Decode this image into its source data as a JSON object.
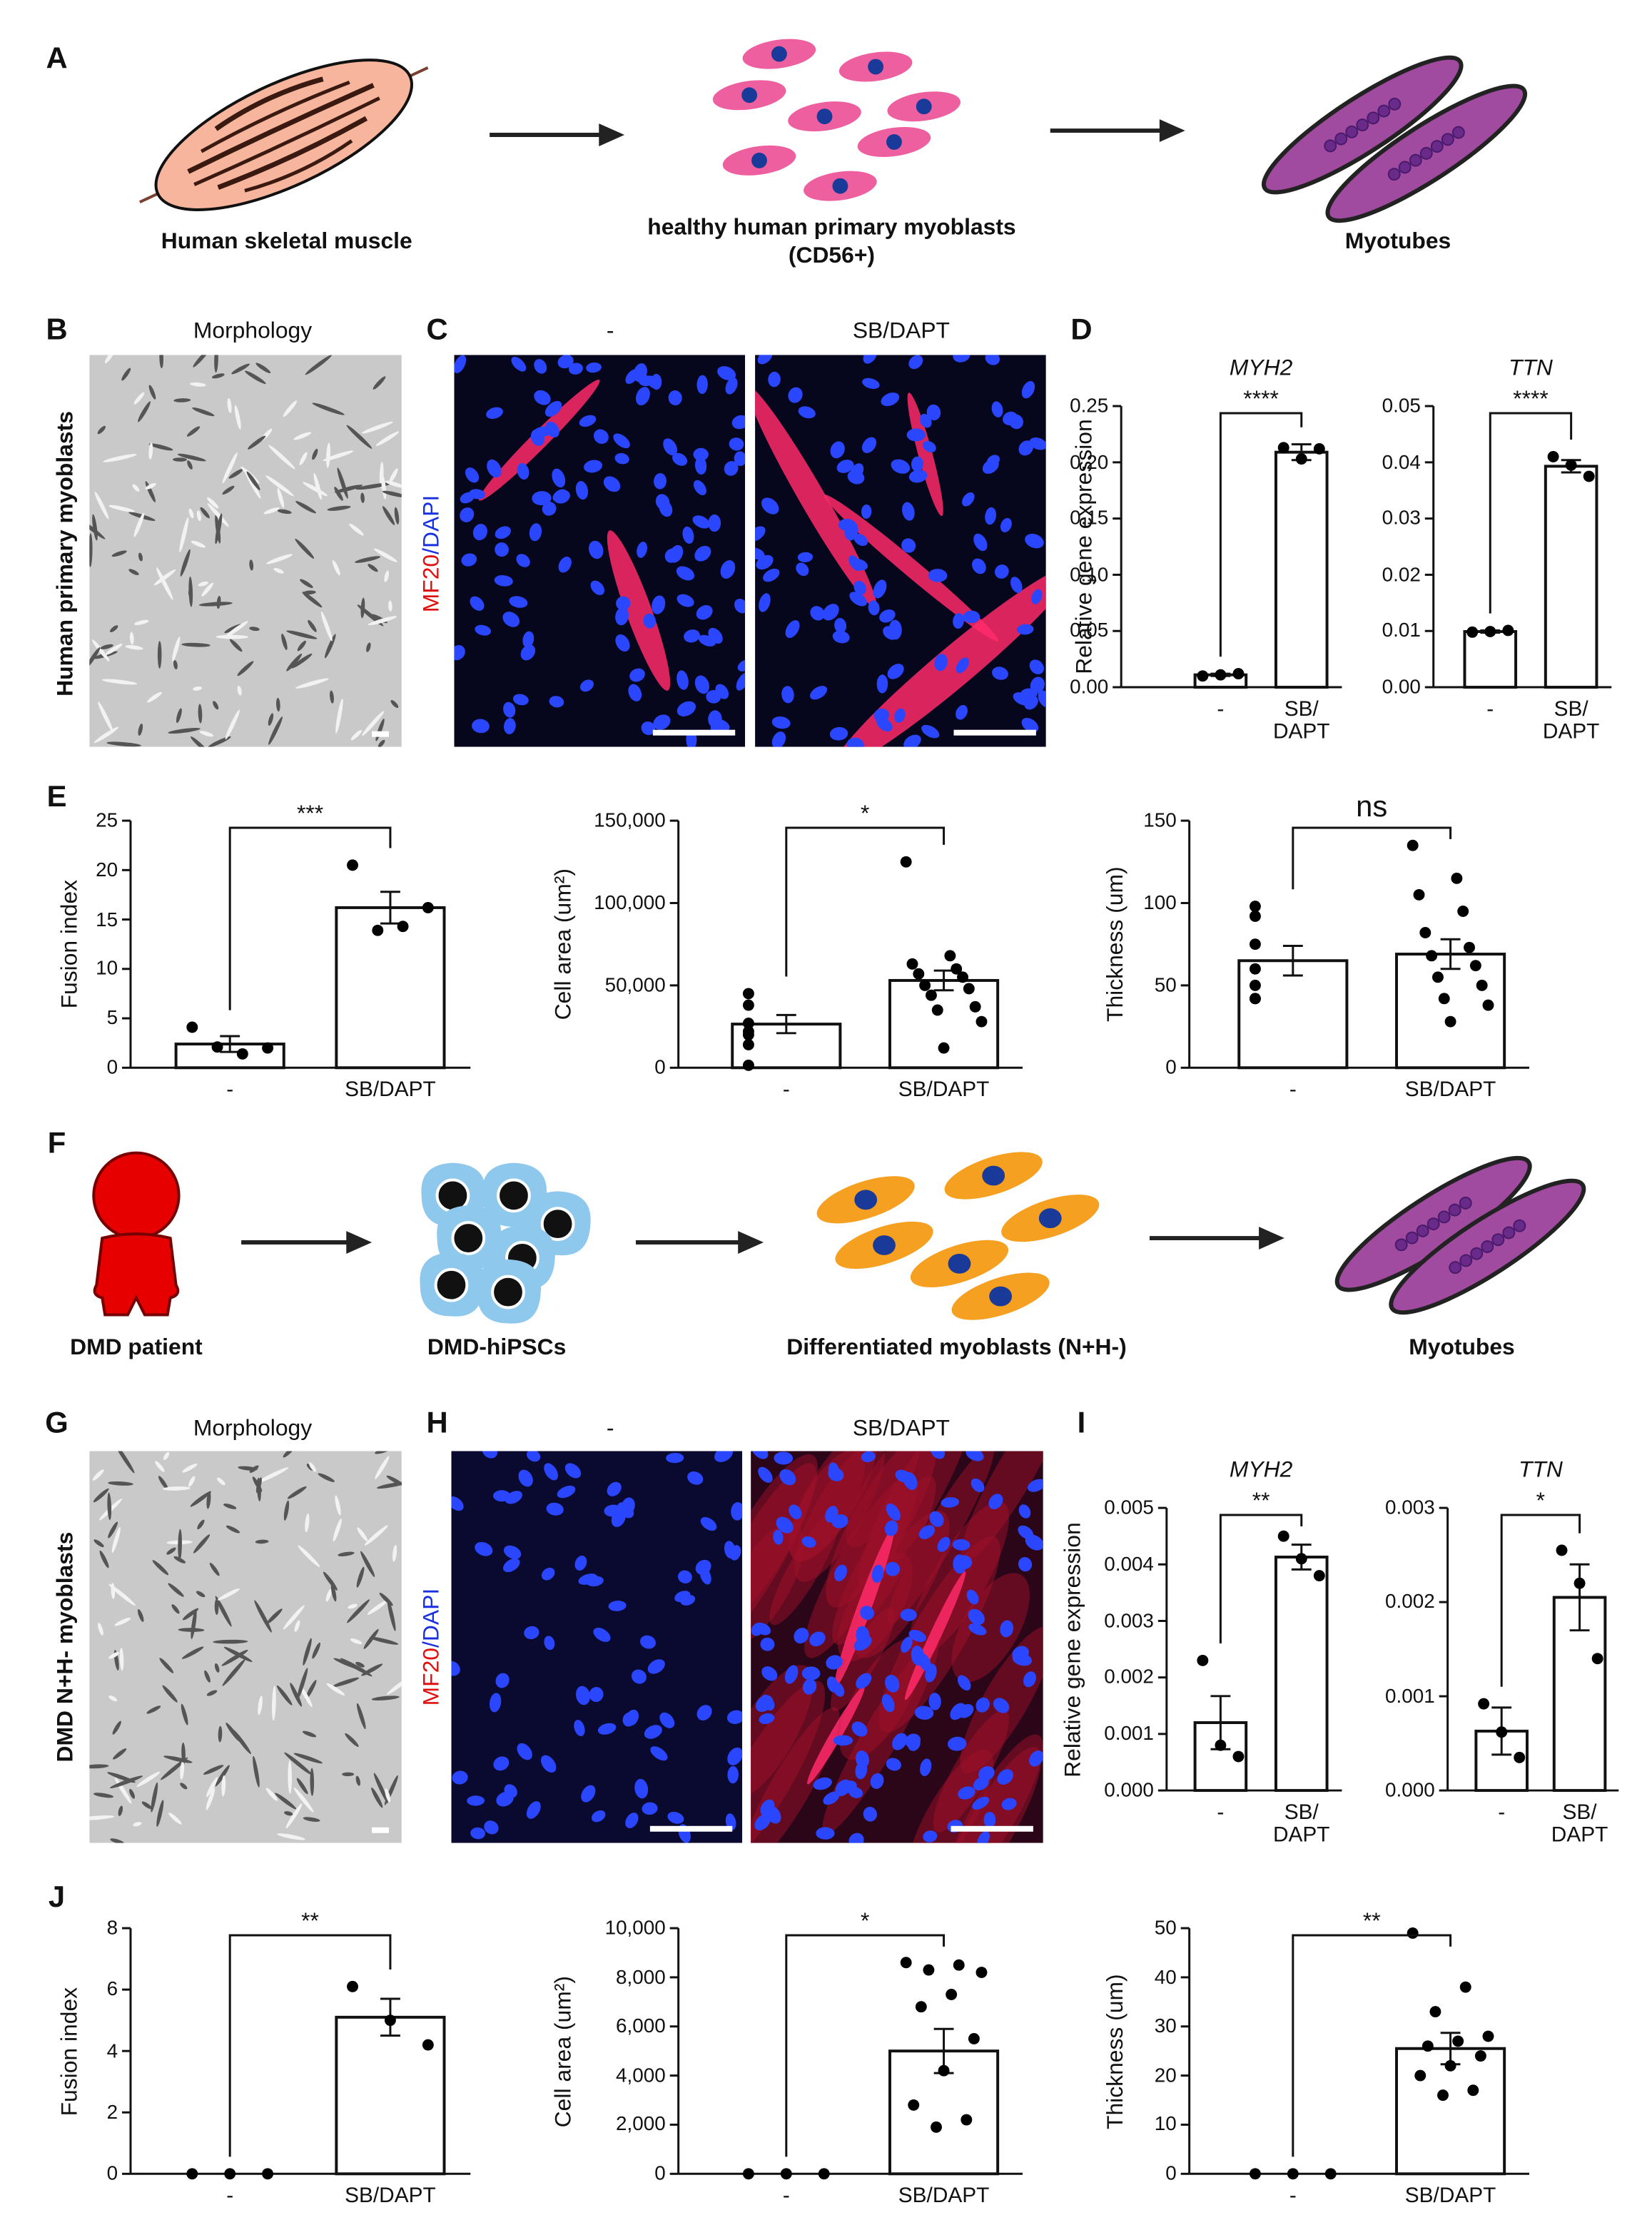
{
  "panel_letters": [
    "A",
    "B",
    "C",
    "D",
    "E",
    "F",
    "G",
    "H",
    "I",
    "J"
  ],
  "panel_a": {
    "steps": [
      "Human skeletal muscle",
      "healthy human primary myoblasts\n(CD56+)",
      "Myotubes"
    ]
  },
  "panel_b": {
    "title": "Morphology",
    "row_label": "Human primary myoblasts"
  },
  "panel_c": {
    "conditions": [
      "-",
      "SB/DAPT"
    ],
    "stain": [
      "MF20",
      "/DAPI"
    ]
  },
  "panel_f": {
    "steps": [
      "DMD patient",
      "DMD-hiPSCs",
      "Differentiated myoblasts (N+H-)",
      "Myotubes"
    ]
  },
  "panel_g": {
    "title": "Morphology",
    "row_label": "DMD N+H- myoblasts"
  },
  "panel_h": {
    "conditions": [
      "-",
      "SB/DAPT"
    ],
    "stain": [
      "MF20",
      "/DAPI"
    ]
  },
  "chart_data": [
    {
      "type": "bar",
      "title": "MYH2",
      "y_label": "Relative gene expression",
      "categories": [
        "-",
        "SB/\nDAPT"
      ],
      "values": [
        0.011,
        0.209
      ],
      "errors": [
        0.001,
        0.007
      ],
      "points": [
        [
          0.01,
          0.011,
          0.012
        ],
        [
          0.213,
          0.203,
          0.212
        ]
      ],
      "ylim": [
        0,
        0.25
      ],
      "yticks": [
        {
          "value": 0,
          "label": "0.00"
        },
        0.05,
        {
          "value": 0.1,
          "label": "0.10"
        },
        0.15,
        {
          "value": 0.2,
          "label": "0.20"
        },
        0.25
      ],
      "significance": "****",
      "color": "#ffffff"
    },
    {
      "type": "bar",
      "title": "TTN",
      "categories": [
        "-",
        "SB/\nDAPT"
      ],
      "values": [
        0.0099,
        0.0393
      ],
      "errors": [
        0.0002,
        0.0011
      ],
      "points": [
        [
          0.0098,
          0.0099,
          0.0101
        ],
        [
          0.041,
          0.0395,
          0.0375
        ]
      ],
      "ylim": [
        0,
        0.05
      ],
      "yticks": [
        {
          "value": 0,
          "label": "0.00"
        },
        0.01,
        0.02,
        0.03,
        0.04,
        0.05
      ],
      "significance": "****",
      "color": "#ffffff"
    },
    {
      "type": "bar",
      "y_label": "Fusion index",
      "categories": [
        "-",
        "SB/DAPT"
      ],
      "values": [
        2.4,
        16.2
      ],
      "errors": [
        0.8,
        1.6
      ],
      "points": [
        [
          4.1,
          2.0,
          1.4,
          2.1
        ],
        [
          20.5,
          16.2,
          14.3,
          13.9
        ]
      ],
      "ylim": [
        0,
        25
      ],
      "yticks": [
        0,
        5,
        10,
        15,
        20,
        25
      ],
      "significance": "***",
      "color": "#ffffff"
    },
    {
      "type": "bar",
      "y_label": "Cell area (um²)",
      "categories": [
        "-",
        "SB/DAPT"
      ],
      "values": [
        26500,
        53000
      ],
      "errors": [
        5500,
        6000
      ],
      "points": [
        [
          45000,
          38000,
          27000,
          22000,
          20000,
          14000,
          1500
        ],
        [
          125000,
          68000,
          63000,
          60000,
          57000,
          55000,
          50000,
          48000,
          44000,
          37000,
          35000,
          28000,
          12000
        ]
      ],
      "ylim": [
        0,
        150000
      ],
      "yticks": [
        0,
        {
          "value": 50000,
          "label": "50,000"
        },
        {
          "value": 100000,
          "label": "100,000"
        },
        {
          "value": 150000,
          "label": "150,000"
        }
      ],
      "significance": "*",
      "color": "#ffffff"
    },
    {
      "type": "bar",
      "y_label": "Thickness (um)",
      "categories": [
        "-",
        "SB/DAPT"
      ],
      "values": [
        65,
        69
      ],
      "errors": [
        9,
        9
      ],
      "points": [
        [
          98,
          92,
          75,
          60,
          50,
          42,
          42
        ],
        [
          135,
          115,
          105,
          95,
          82,
          73,
          68,
          62,
          55,
          50,
          42,
          38,
          28
        ]
      ],
      "ylim": [
        0,
        150
      ],
      "yticks": [
        0,
        50,
        100,
        150
      ],
      "significance": "ns",
      "color": "#ffffff"
    },
    {
      "type": "bar",
      "title": "MYH2",
      "y_label": "Relative gene expression",
      "categories": [
        "-",
        "SB/\nDAPT"
      ],
      "values": [
        0.0012,
        0.00413
      ],
      "errors": [
        0.00047,
        0.00022
      ],
      "points": [
        [
          0.0023,
          0.0008,
          0.0006
        ],
        [
          0.0045,
          0.0041,
          0.0038
        ]
      ],
      "ylim": [
        0,
        0.005
      ],
      "yticks": [
        {
          "value": 0,
          "label": "0.000"
        },
        0.001,
        0.002,
        0.003,
        0.004,
        0.005
      ],
      "significance": "**",
      "color": "#ffffff"
    },
    {
      "type": "bar",
      "title": "TTN",
      "categories": [
        "-",
        "SB/\nDAPT"
      ],
      "values": [
        0.00063,
        0.00205
      ],
      "errors": [
        0.00025,
        0.00035
      ],
      "points": [
        [
          0.00092,
          0.00062,
          0.00035
        ],
        [
          0.00255,
          0.0022,
          0.0014
        ]
      ],
      "ylim": [
        0,
        0.003
      ],
      "yticks": [
        {
          "value": 0,
          "label": "0.000"
        },
        0.001,
        0.002,
        0.003
      ],
      "significance": "*",
      "color": "#ffffff"
    },
    {
      "type": "bar",
      "y_label": "Fusion index",
      "categories": [
        "-",
        "SB/DAPT"
      ],
      "values": [
        0,
        5.1
      ],
      "errors": [
        null,
        0.6
      ],
      "points": [
        [
          0,
          0,
          0
        ],
        [
          6.1,
          5.0,
          4.2
        ]
      ],
      "ylim": [
        0,
        8
      ],
      "yticks": [
        0,
        2,
        4,
        6,
        8
      ],
      "significance": "**",
      "color": "#ffffff"
    },
    {
      "type": "bar",
      "y_label": "Cell area (um²)",
      "categories": [
        "-",
        "SB/DAPT"
      ],
      "values": [
        0,
        5000
      ],
      "errors": [
        null,
        900
      ],
      "points": [
        [
          0,
          0,
          0
        ],
        [
          8600,
          8500,
          8300,
          8200,
          7300,
          6800,
          5500,
          4200,
          2800,
          2200,
          1900
        ]
      ],
      "ylim": [
        0,
        10000
      ],
      "yticks": [
        0,
        {
          "value": 2000,
          "label": "2,000"
        },
        {
          "value": 4000,
          "label": "4,000"
        },
        {
          "value": 6000,
          "label": "6,000"
        },
        {
          "value": 8000,
          "label": "8,000"
        },
        {
          "value": 10000,
          "label": "10,000"
        }
      ],
      "significance": "*",
      "color": "#ffffff"
    },
    {
      "type": "bar",
      "y_label": "Thickness (um)",
      "categories": [
        "-",
        "SB/DAPT"
      ],
      "values": [
        0,
        25.5
      ],
      "errors": [
        null,
        3.2
      ],
      "points": [
        [
          0,
          0,
          0
        ],
        [
          49,
          38,
          33,
          28,
          27,
          26,
          24,
          22,
          20,
          17,
          16
        ]
      ],
      "ylim": [
        0,
        50
      ],
      "yticks": [
        0,
        10,
        20,
        30,
        40,
        50
      ],
      "significance": "**",
      "color": "#ffffff"
    }
  ]
}
